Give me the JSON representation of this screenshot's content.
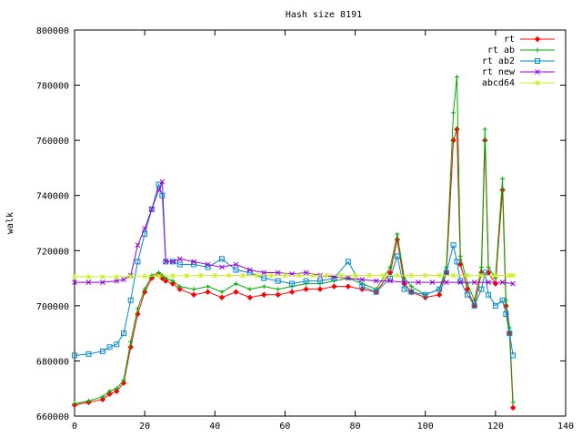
{
  "chart_data": {
    "type": "line",
    "title": "Hash size 8191",
    "xlabel": "",
    "ylabel": "walk",
    "xlim": [
      0,
      140
    ],
    "ylim": [
      660000,
      800000
    ],
    "xticks": [
      0,
      20,
      40,
      60,
      80,
      100,
      120,
      140
    ],
    "yticks": [
      660000,
      680000,
      700000,
      720000,
      740000,
      760000,
      780000,
      800000
    ],
    "grid": false,
    "legend_position": "top-right",
    "series": [
      {
        "name": "rt",
        "color": "#ff0000",
        "marker": "diamond",
        "x": [
          0,
          4,
          8,
          10,
          12,
          14,
          16,
          18,
          20,
          22,
          24,
          25,
          26,
          28,
          30,
          34,
          38,
          42,
          46,
          50,
          54,
          58,
          62,
          66,
          70,
          74,
          78,
          82,
          86,
          90,
          92,
          94,
          96,
          100,
          104,
          106,
          108,
          109,
          110,
          112,
          114,
          116,
          117,
          118,
          120,
          122,
          123,
          124,
          125
        ],
        "y": [
          664000,
          665000,
          666000,
          668000,
          669000,
          672000,
          685000,
          697000,
          705000,
          710000,
          711500,
          710000,
          709000,
          708000,
          706000,
          704000,
          705000,
          703000,
          705000,
          703000,
          704000,
          704000,
          705000,
          706000,
          706000,
          707000,
          707000,
          706000,
          705000,
          712000,
          724000,
          708000,
          705000,
          703000,
          704000,
          712000,
          760000,
          764000,
          715000,
          706000,
          700000,
          712000,
          760000,
          712000,
          708000,
          742000,
          700000,
          690000,
          663000
        ]
      },
      {
        "name": "rt ab",
        "color": "#00aa00",
        "marker": "plus",
        "x": [
          0,
          4,
          8,
          10,
          12,
          14,
          16,
          18,
          20,
          22,
          24,
          25,
          26,
          28,
          30,
          34,
          38,
          42,
          46,
          50,
          54,
          58,
          62,
          66,
          70,
          74,
          78,
          82,
          86,
          90,
          92,
          94,
          96,
          100,
          104,
          106,
          108,
          109,
          110,
          112,
          114,
          116,
          117,
          118,
          120,
          122,
          123,
          124,
          125
        ],
        "y": [
          664500,
          665500,
          667000,
          669000,
          670000,
          673000,
          687000,
          699000,
          706000,
          711000,
          712000,
          711000,
          710000,
          709000,
          707000,
          706000,
          707000,
          705000,
          708000,
          706000,
          707000,
          706000,
          707000,
          708000,
          708000,
          709000,
          710000,
          708000,
          706000,
          714000,
          726000,
          710000,
          707000,
          704000,
          706000,
          714000,
          770000,
          783000,
          718000,
          708000,
          702000,
          714000,
          764000,
          714000,
          710000,
          746000,
          702000,
          692000,
          665000
        ]
      },
      {
        "name": "rt ab2",
        "color": "#0088cc",
        "marker": "square",
        "x": [
          0,
          4,
          8,
          10,
          12,
          14,
          16,
          18,
          20,
          22,
          24,
          25,
          26,
          28,
          30,
          34,
          38,
          42,
          46,
          50,
          54,
          58,
          62,
          66,
          70,
          74,
          78,
          82,
          86,
          90,
          92,
          94,
          96,
          100,
          104,
          106,
          108,
          109,
          110,
          112,
          114,
          116,
          117,
          118,
          120,
          122,
          123,
          124,
          125
        ],
        "y": [
          682000,
          682500,
          683500,
          685000,
          686000,
          690000,
          702000,
          716000,
          726000,
          735000,
          744000,
          740000,
          716000,
          716000,
          715000,
          715000,
          714000,
          717000,
          713000,
          712000,
          710000,
          709000,
          708000,
          709000,
          709000,
          710000,
          716000,
          707000,
          705000,
          710000,
          718000,
          706000,
          705000,
          704000,
          706000,
          712000,
          722000,
          716000,
          709000,
          704000,
          700000,
          706000,
          712000,
          704000,
          700000,
          702000,
          697000,
          690000,
          682000
        ]
      },
      {
        "name": "rt new",
        "color": "#9400d3",
        "marker": "x",
        "x": [
          0,
          4,
          8,
          12,
          14,
          16,
          18,
          20,
          22,
          24,
          25,
          26,
          28,
          30,
          34,
          38,
          42,
          46,
          50,
          54,
          58,
          62,
          66,
          70,
          74,
          78,
          82,
          86,
          90,
          94,
          98,
          102,
          106,
          110,
          114,
          118,
          122,
          125
        ],
        "y": [
          708500,
          708500,
          708500,
          709000,
          709500,
          711000,
          722000,
          728000,
          735000,
          742000,
          745000,
          716000,
          716000,
          717000,
          716000,
          715000,
          714000,
          715000,
          713000,
          712000,
          712000,
          711500,
          712000,
          711000,
          710500,
          710000,
          709500,
          709000,
          709000,
          708500,
          708500,
          708500,
          708500,
          708500,
          708500,
          708500,
          708500,
          708000
        ]
      },
      {
        "name": "abcd64",
        "color": "#ccee22",
        "marker": "star",
        "x": [
          0,
          4,
          8,
          12,
          16,
          20,
          24,
          28,
          32,
          36,
          40,
          44,
          48,
          52,
          56,
          60,
          64,
          68,
          72,
          76,
          80,
          84,
          88,
          92,
          96,
          100,
          104,
          108,
          112,
          116,
          120,
          124,
          125
        ],
        "y": [
          710500,
          710500,
          710500,
          710500,
          710600,
          710700,
          710800,
          710900,
          710900,
          711000,
          711000,
          711000,
          711000,
          711000,
          711000,
          711000,
          711000,
          711000,
          711000,
          711000,
          711000,
          711000,
          711000,
          711000,
          711000,
          711000,
          711000,
          711000,
          711000,
          711000,
          711000,
          711000,
          711000
        ]
      }
    ]
  }
}
